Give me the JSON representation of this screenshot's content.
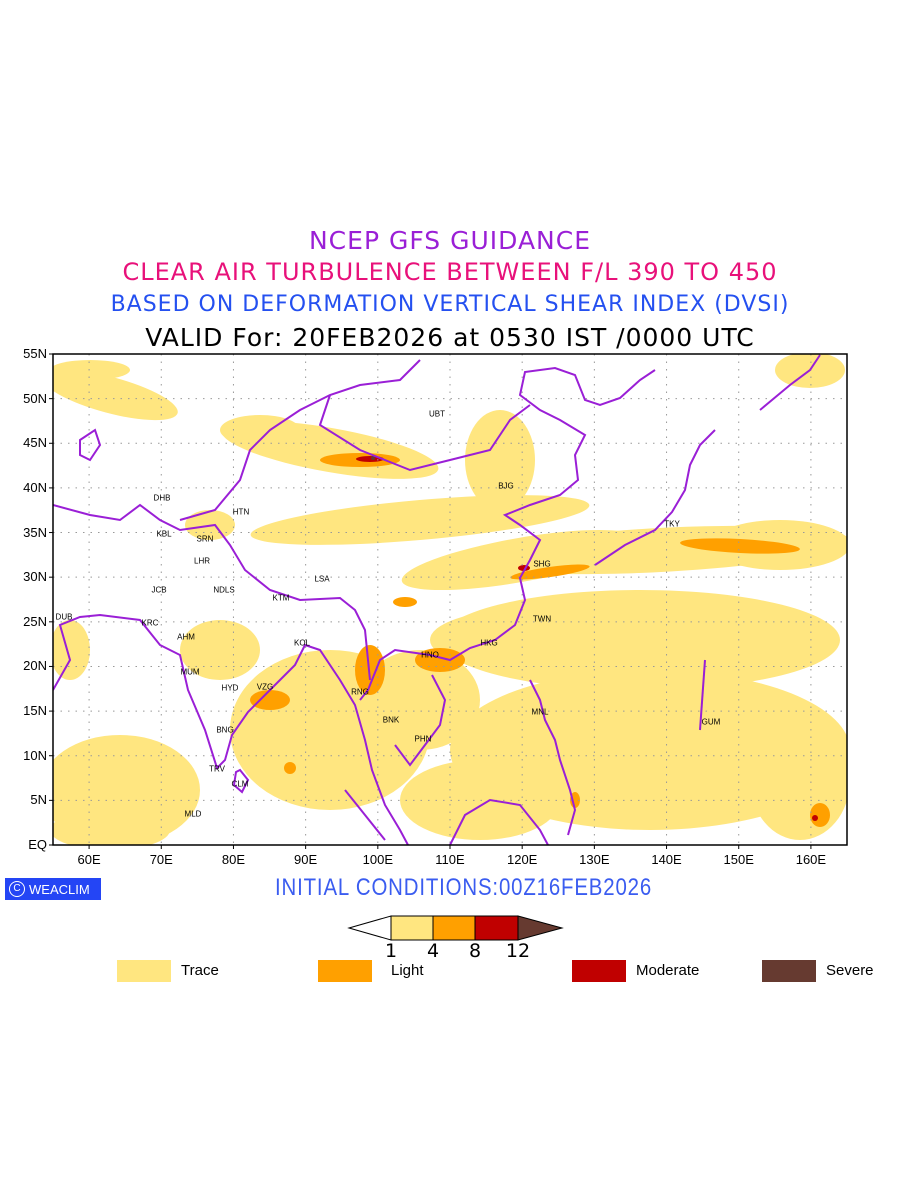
{
  "titles": {
    "line1": "NCEP GFS GUIDANCE",
    "line2": "CLEAR AIR TURBULENCE BETWEEN F/L 390 TO 450",
    "line3": "BASED ON DEFORMATION VERTICAL SHEAR INDEX (DVSI)",
    "line4": "VALID For: 20FEB2026 at 0530 IST /0000 UTC"
  },
  "axes": {
    "lat_labels": [
      "55N",
      "50N",
      "45N",
      "40N",
      "35N",
      "30N",
      "25N",
      "20N",
      "15N",
      "10N",
      "5N",
      "EQ"
    ],
    "lon_labels": [
      "60E",
      "70E",
      "80E",
      "90E",
      "100E",
      "110E",
      "120E",
      "130E",
      "140E",
      "150E",
      "160E"
    ],
    "lon_range": [
      55,
      165
    ],
    "lat_range": [
      0,
      55
    ]
  },
  "cities": [
    "UBT",
    "DHB",
    "HTN",
    "KBL",
    "SRN",
    "BJG",
    "TKY",
    "LHR",
    "SHG",
    "LSA",
    "JCB",
    "NDLS",
    "KTM",
    "DUB",
    "KRC",
    "TWN",
    "AHM",
    "KOL",
    "HNO",
    "HKG",
    "MUM",
    "HYD",
    "VZG",
    "RNG",
    "BNK",
    "MNL",
    "GUM",
    "PHN",
    "BNG",
    "TRV",
    "CLM",
    "MLD"
  ],
  "logo": "WEACLIM",
  "logo_symbol": "C",
  "initial_conditions": "INITIAL CONDITIONS:00Z16FEB2026",
  "colorbar": {
    "thresholds": [
      "1",
      "4",
      "8",
      "12"
    ],
    "colors": [
      "#ffe680",
      "#ffa000",
      "#c00000",
      "#663a30"
    ]
  },
  "legend": [
    {
      "label": "Trace",
      "color": "#ffe680"
    },
    {
      "label": "Light",
      "color": "#ffa000"
    },
    {
      "label": "Moderate",
      "color": "#c00000"
    },
    {
      "label": "Severe",
      "color": "#663a30"
    }
  ],
  "colors": {
    "coast": "#9a1fd6",
    "grid": "#999999"
  }
}
